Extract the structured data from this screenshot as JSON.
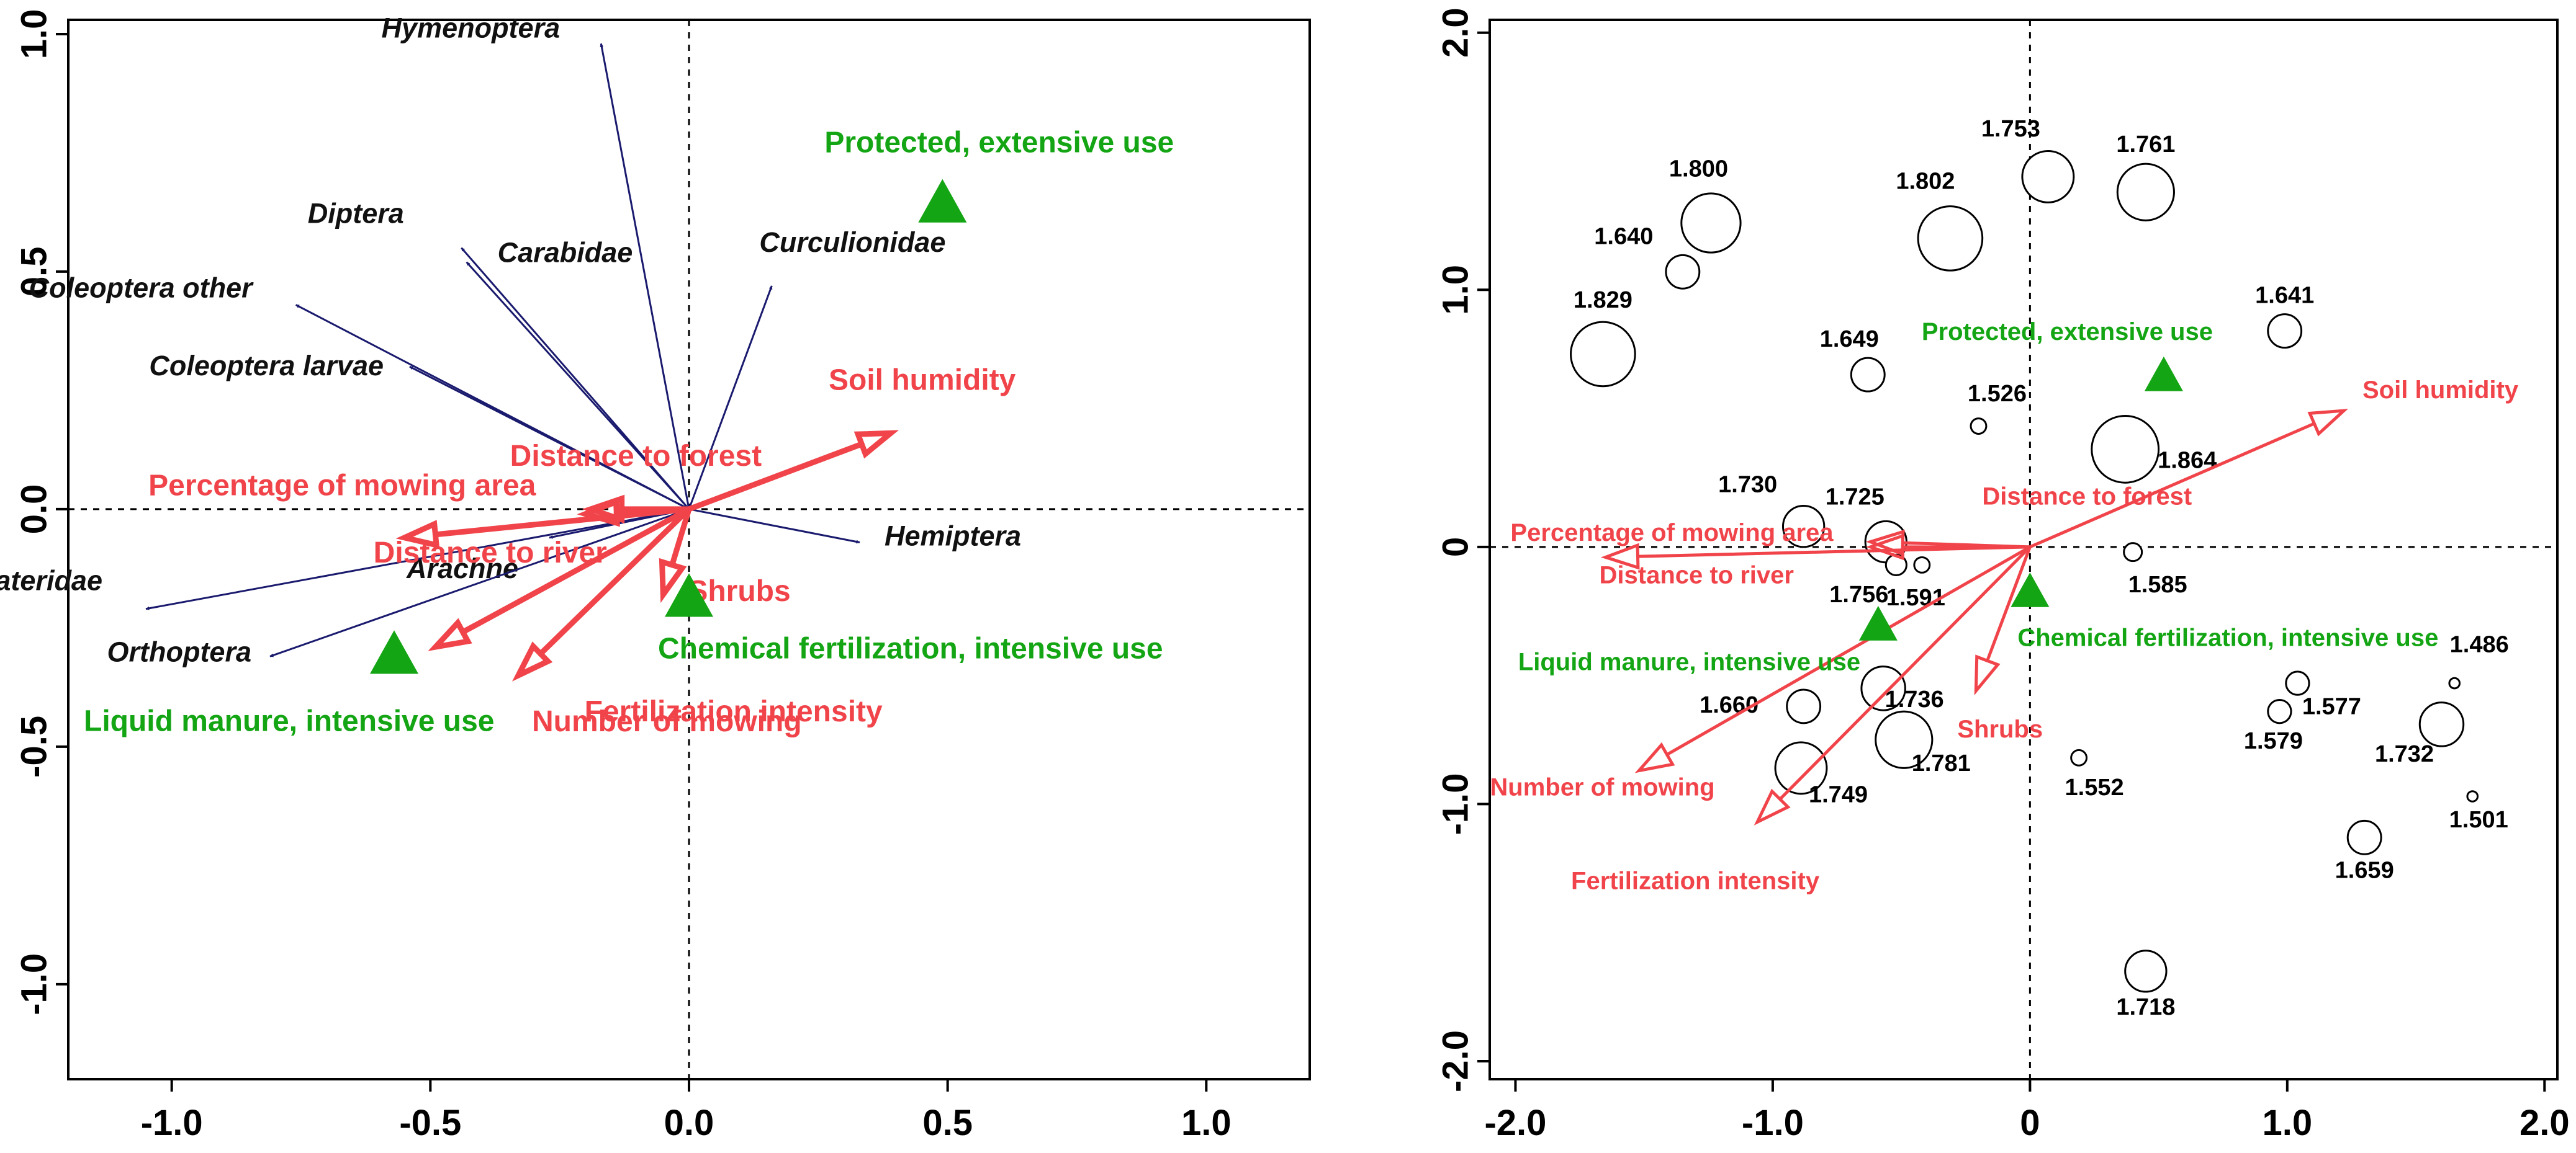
{
  "colors": {
    "species_arrow": "#1a1a6e",
    "environment": "#f0444a",
    "nominal": "#14a514",
    "axis": "#000000"
  },
  "chart_data": [
    {
      "type": "scatter",
      "title": "",
      "xlabel": "",
      "ylabel": "",
      "xlim": [
        -1.2,
        1.2
      ],
      "ylim": [
        -1.2,
        1.03
      ],
      "xticks": [
        -1.0,
        -0.5,
        0.0,
        0.5,
        1.0
      ],
      "xtick_labels": [
        "-1.0",
        "-0.5",
        "0.0",
        "0.5",
        "1.0"
      ],
      "yticks": [
        -1.0,
        -0.5,
        0.0,
        0.5,
        1.0
      ],
      "ytick_labels": [
        "-1.0",
        "-0.5",
        "0.0",
        "0.5",
        "1.0"
      ],
      "species_arrows": [
        {
          "name": "Hymenoptera",
          "x": -0.17,
          "y": 0.98
        },
        {
          "name": "Diptera",
          "x": -0.44,
          "y": 0.55
        },
        {
          "name": "Carabidae",
          "x": -0.43,
          "y": 0.52
        },
        {
          "name": "Curculionidae",
          "x": 0.16,
          "y": 0.47
        },
        {
          "name": "Coleoptera other",
          "x": -0.76,
          "y": 0.43
        },
        {
          "name": "Coleoptera larvae",
          "x": -0.54,
          "y": 0.3
        },
        {
          "name": "Hemiptera",
          "x": 0.33,
          "y": -0.07
        },
        {
          "name": "Arachne",
          "x": -0.27,
          "y": -0.06
        },
        {
          "name": "Elateridae",
          "x": -1.05,
          "y": -0.21
        },
        {
          "name": "Orthoptera",
          "x": -0.81,
          "y": -0.31
        }
      ],
      "environmental_arrows": [
        {
          "name": "Soil humidity",
          "x": 0.39,
          "y": 0.16
        },
        {
          "name": "Distance to forest",
          "x": -0.19,
          "y": 0.0
        },
        {
          "name": "Percentage of mowing area",
          "x": -0.2,
          "y": -0.01
        },
        {
          "name": "Distance to river",
          "x": -0.55,
          "y": -0.06
        },
        {
          "name": "Shrubs",
          "x": -0.05,
          "y": -0.18
        },
        {
          "name": "Number of mowing",
          "x": -0.33,
          "y": -0.35
        },
        {
          "name": "Fertilization intensity",
          "x": -0.49,
          "y": -0.29
        }
      ],
      "nominal_points": [
        {
          "name": "Protected, extensive use",
          "x": 0.49,
          "y": 0.64
        },
        {
          "name": "Chemical fertilization, intensive use",
          "x": 0.0,
          "y": -0.19
        },
        {
          "name": "Liquid manure, intensive use",
          "x": -0.57,
          "y": -0.31
        }
      ]
    },
    {
      "type": "scatter",
      "title": "",
      "xlabel": "",
      "ylabel": "",
      "xlim": [
        -2.1,
        2.05
      ],
      "ylim": [
        -2.07,
        2.05
      ],
      "xticks": [
        -2.0,
        -1.0,
        0.0,
        1.0,
        2.0
      ],
      "xtick_labels": [
        "-2.0",
        "-1.0",
        "0",
        "1.0",
        "2.0"
      ],
      "yticks": [
        -2.0,
        -1.0,
        0.0,
        1.0,
        2.0
      ],
      "ytick_labels": [
        "-2.0",
        "-1.0",
        "0",
        "1.0",
        "2.0"
      ],
      "sites": [
        {
          "label": "1.753",
          "x": 0.07,
          "y": 1.44,
          "size": 0.2
        },
        {
          "label": "1.761",
          "x": 0.45,
          "y": 1.38,
          "size": 0.22
        },
        {
          "label": "1.800",
          "x": -1.24,
          "y": 1.26,
          "size": 0.23
        },
        {
          "label": "1.802",
          "x": -0.31,
          "y": 1.2,
          "size": 0.25
        },
        {
          "label": "1.640",
          "x": -1.35,
          "y": 1.07,
          "size": 0.13
        },
        {
          "label": "1.829",
          "x": -1.66,
          "y": 0.75,
          "size": 0.25
        },
        {
          "label": "1.641",
          "x": 0.99,
          "y": 0.84,
          "size": 0.13
        },
        {
          "label": "1.649",
          "x": -0.63,
          "y": 0.67,
          "size": 0.13
        },
        {
          "label": "1.526",
          "x": -0.2,
          "y": 0.47,
          "size": 0.06
        },
        {
          "label": "1.864",
          "x": 0.37,
          "y": 0.38,
          "size": 0.26
        },
        {
          "label": "1.730",
          "x": -0.88,
          "y": 0.08,
          "size": 0.16
        },
        {
          "label": "1.725",
          "x": -0.56,
          "y": 0.02,
          "size": 0.16
        },
        {
          "label": "1.756",
          "x": -0.52,
          "y": -0.07,
          "size": 0.08
        },
        {
          "label": "1.591",
          "x": -0.42,
          "y": -0.07,
          "size": 0.06
        },
        {
          "label": "1.585",
          "x": 0.4,
          "y": -0.02,
          "size": 0.07
        },
        {
          "label": "1.660",
          "x": -0.88,
          "y": -0.62,
          "size": 0.13
        },
        {
          "label": "1.736",
          "x": -0.57,
          "y": -0.55,
          "size": 0.17
        },
        {
          "label": "1.781",
          "x": -0.49,
          "y": -0.75,
          "size": 0.22
        },
        {
          "label": "1.749",
          "x": -0.89,
          "y": -0.86,
          "size": 0.2
        },
        {
          "label": "1.552",
          "x": 0.19,
          "y": -0.82,
          "size": 0.06
        },
        {
          "label": "1.577",
          "x": 1.04,
          "y": -0.53,
          "size": 0.09
        },
        {
          "label": "1.579",
          "x": 0.97,
          "y": -0.64,
          "size": 0.09
        },
        {
          "label": "1.486",
          "x": 1.65,
          "y": -0.53,
          "size": 0.04
        },
        {
          "label": "1.732",
          "x": 1.6,
          "y": -0.69,
          "size": 0.17
        },
        {
          "label": "1.501",
          "x": 1.72,
          "y": -0.97,
          "size": 0.04
        },
        {
          "label": "1.659",
          "x": 1.3,
          "y": -1.13,
          "size": 0.13
        },
        {
          "label": "1.718",
          "x": 0.45,
          "y": -1.65,
          "size": 0.16
        }
      ],
      "environmental_arrows": [
        {
          "name": "Soil humidity",
          "x": 1.22,
          "y": 0.53
        },
        {
          "name": "Distance to forest",
          "x": -0.62,
          "y": 0.02
        },
        {
          "name": "Percentage of mowing area",
          "x": -0.62,
          "y": 0.0
        },
        {
          "name": "Distance to river",
          "x": -1.65,
          "y": -0.04
        },
        {
          "name": "Shrubs",
          "x": -0.21,
          "y": -0.56
        },
        {
          "name": "Number of mowing",
          "x": -1.52,
          "y": -0.87
        },
        {
          "name": "Fertilization intensity",
          "x": -1.06,
          "y": -1.07
        }
      ],
      "nominal_points": [
        {
          "name": "Protected, extensive use",
          "x": 0.52,
          "y": 0.66
        },
        {
          "name": "Chemical fertilization, intensive use",
          "x": 0.0,
          "y": -0.18
        },
        {
          "name": "Liquid manure, intensive use",
          "x": -0.59,
          "y": -0.31
        }
      ]
    }
  ]
}
